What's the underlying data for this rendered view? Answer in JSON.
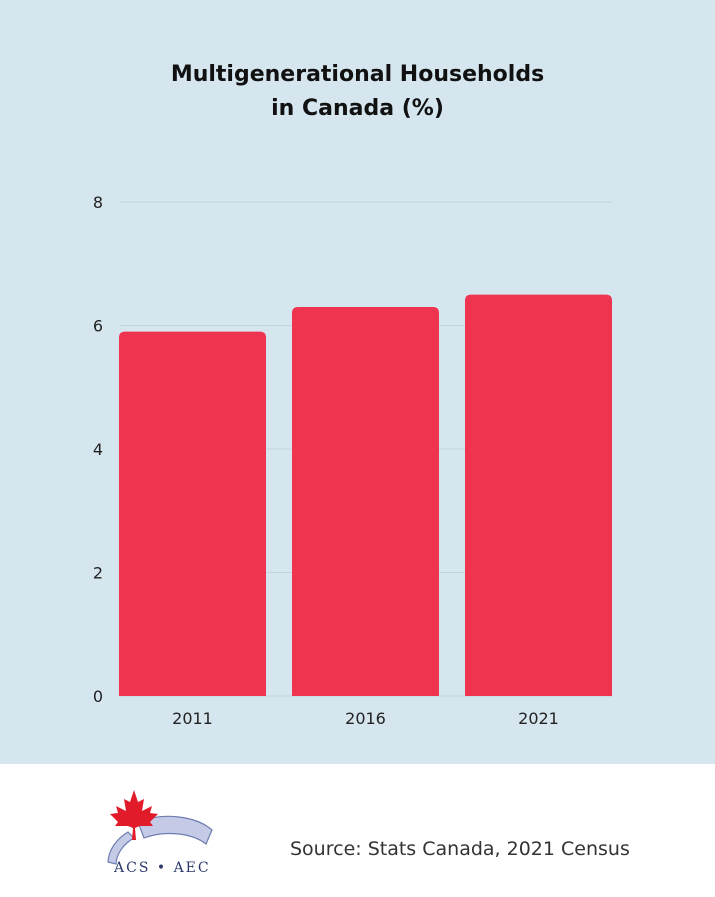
{
  "colors": {
    "panel": "#d6e6ef",
    "bar": "#ef3450",
    "grid": "#c3d4de",
    "axis_text": "#222222"
  },
  "chart_data": {
    "type": "bar",
    "title_lines": [
      "Multigenerational Households",
      "in Canada (%)"
    ],
    "categories": [
      "2011",
      "2016",
      "2021"
    ],
    "values": [
      5.9,
      6.3,
      6.5
    ],
    "ylim": [
      0,
      8
    ],
    "yticks": [
      "0",
      "2",
      "4",
      "6",
      "8"
    ],
    "grid": true,
    "legend": "none",
    "xlabel": "",
    "ylabel": ""
  },
  "footer": {
    "source": "Source: Stats Canada, 2021 Census",
    "logo_icon": "maple-leaf-icon",
    "logo_text": "ACS • AEC"
  }
}
